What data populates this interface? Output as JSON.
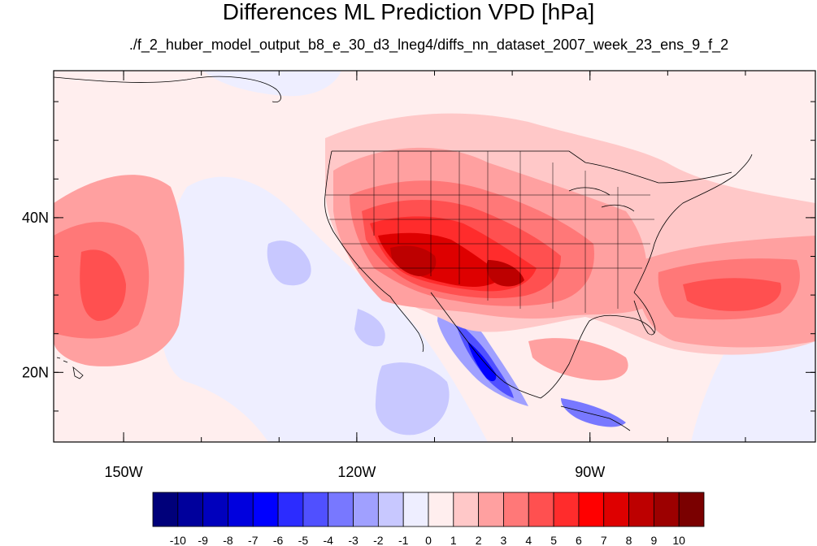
{
  "title": "Differences ML Prediction VPD [hPa]",
  "subtitle": "./f_2_huber_model_output_b8_e_30_d3_lneg4/diffs_nn_dataset_2007_week_23_ens_9_f_2",
  "lon_ticks": [
    {
      "label": "150W",
      "lon": -150
    },
    {
      "label": "120W",
      "lon": -120
    },
    {
      "label": "90W",
      "lon": -90
    }
  ],
  "lat_ticks": [
    {
      "label": "40N",
      "lat": 40
    },
    {
      "label": "20N",
      "lat": 20
    }
  ],
  "colorbar": {
    "labels": [
      "-10",
      "-9",
      "-8",
      "-7",
      "-6",
      "-5",
      "-4",
      "-3",
      "-2",
      "-1",
      "0",
      "1",
      "2",
      "3",
      "4",
      "5",
      "6",
      "7",
      "8",
      "9",
      "10"
    ],
    "colors": [
      "#00007a",
      "#00009c",
      "#0000bd",
      "#0000de",
      "#0000ff",
      "#2c2cff",
      "#5050ff",
      "#7878ff",
      "#a0a0ff",
      "#c8c8ff",
      "#eeeeff",
      "#ffeeee",
      "#ffc8c8",
      "#ffa0a0",
      "#ff7878",
      "#ff5050",
      "#ff2c2c",
      "#ff0000",
      "#de0000",
      "#bd0000",
      "#9c0000",
      "#7a0000"
    ]
  },
  "map": {
    "lon_range": [
      -159,
      -61
    ],
    "lat_range": [
      11,
      59
    ],
    "field": "VPD difference (hPa)"
  }
}
